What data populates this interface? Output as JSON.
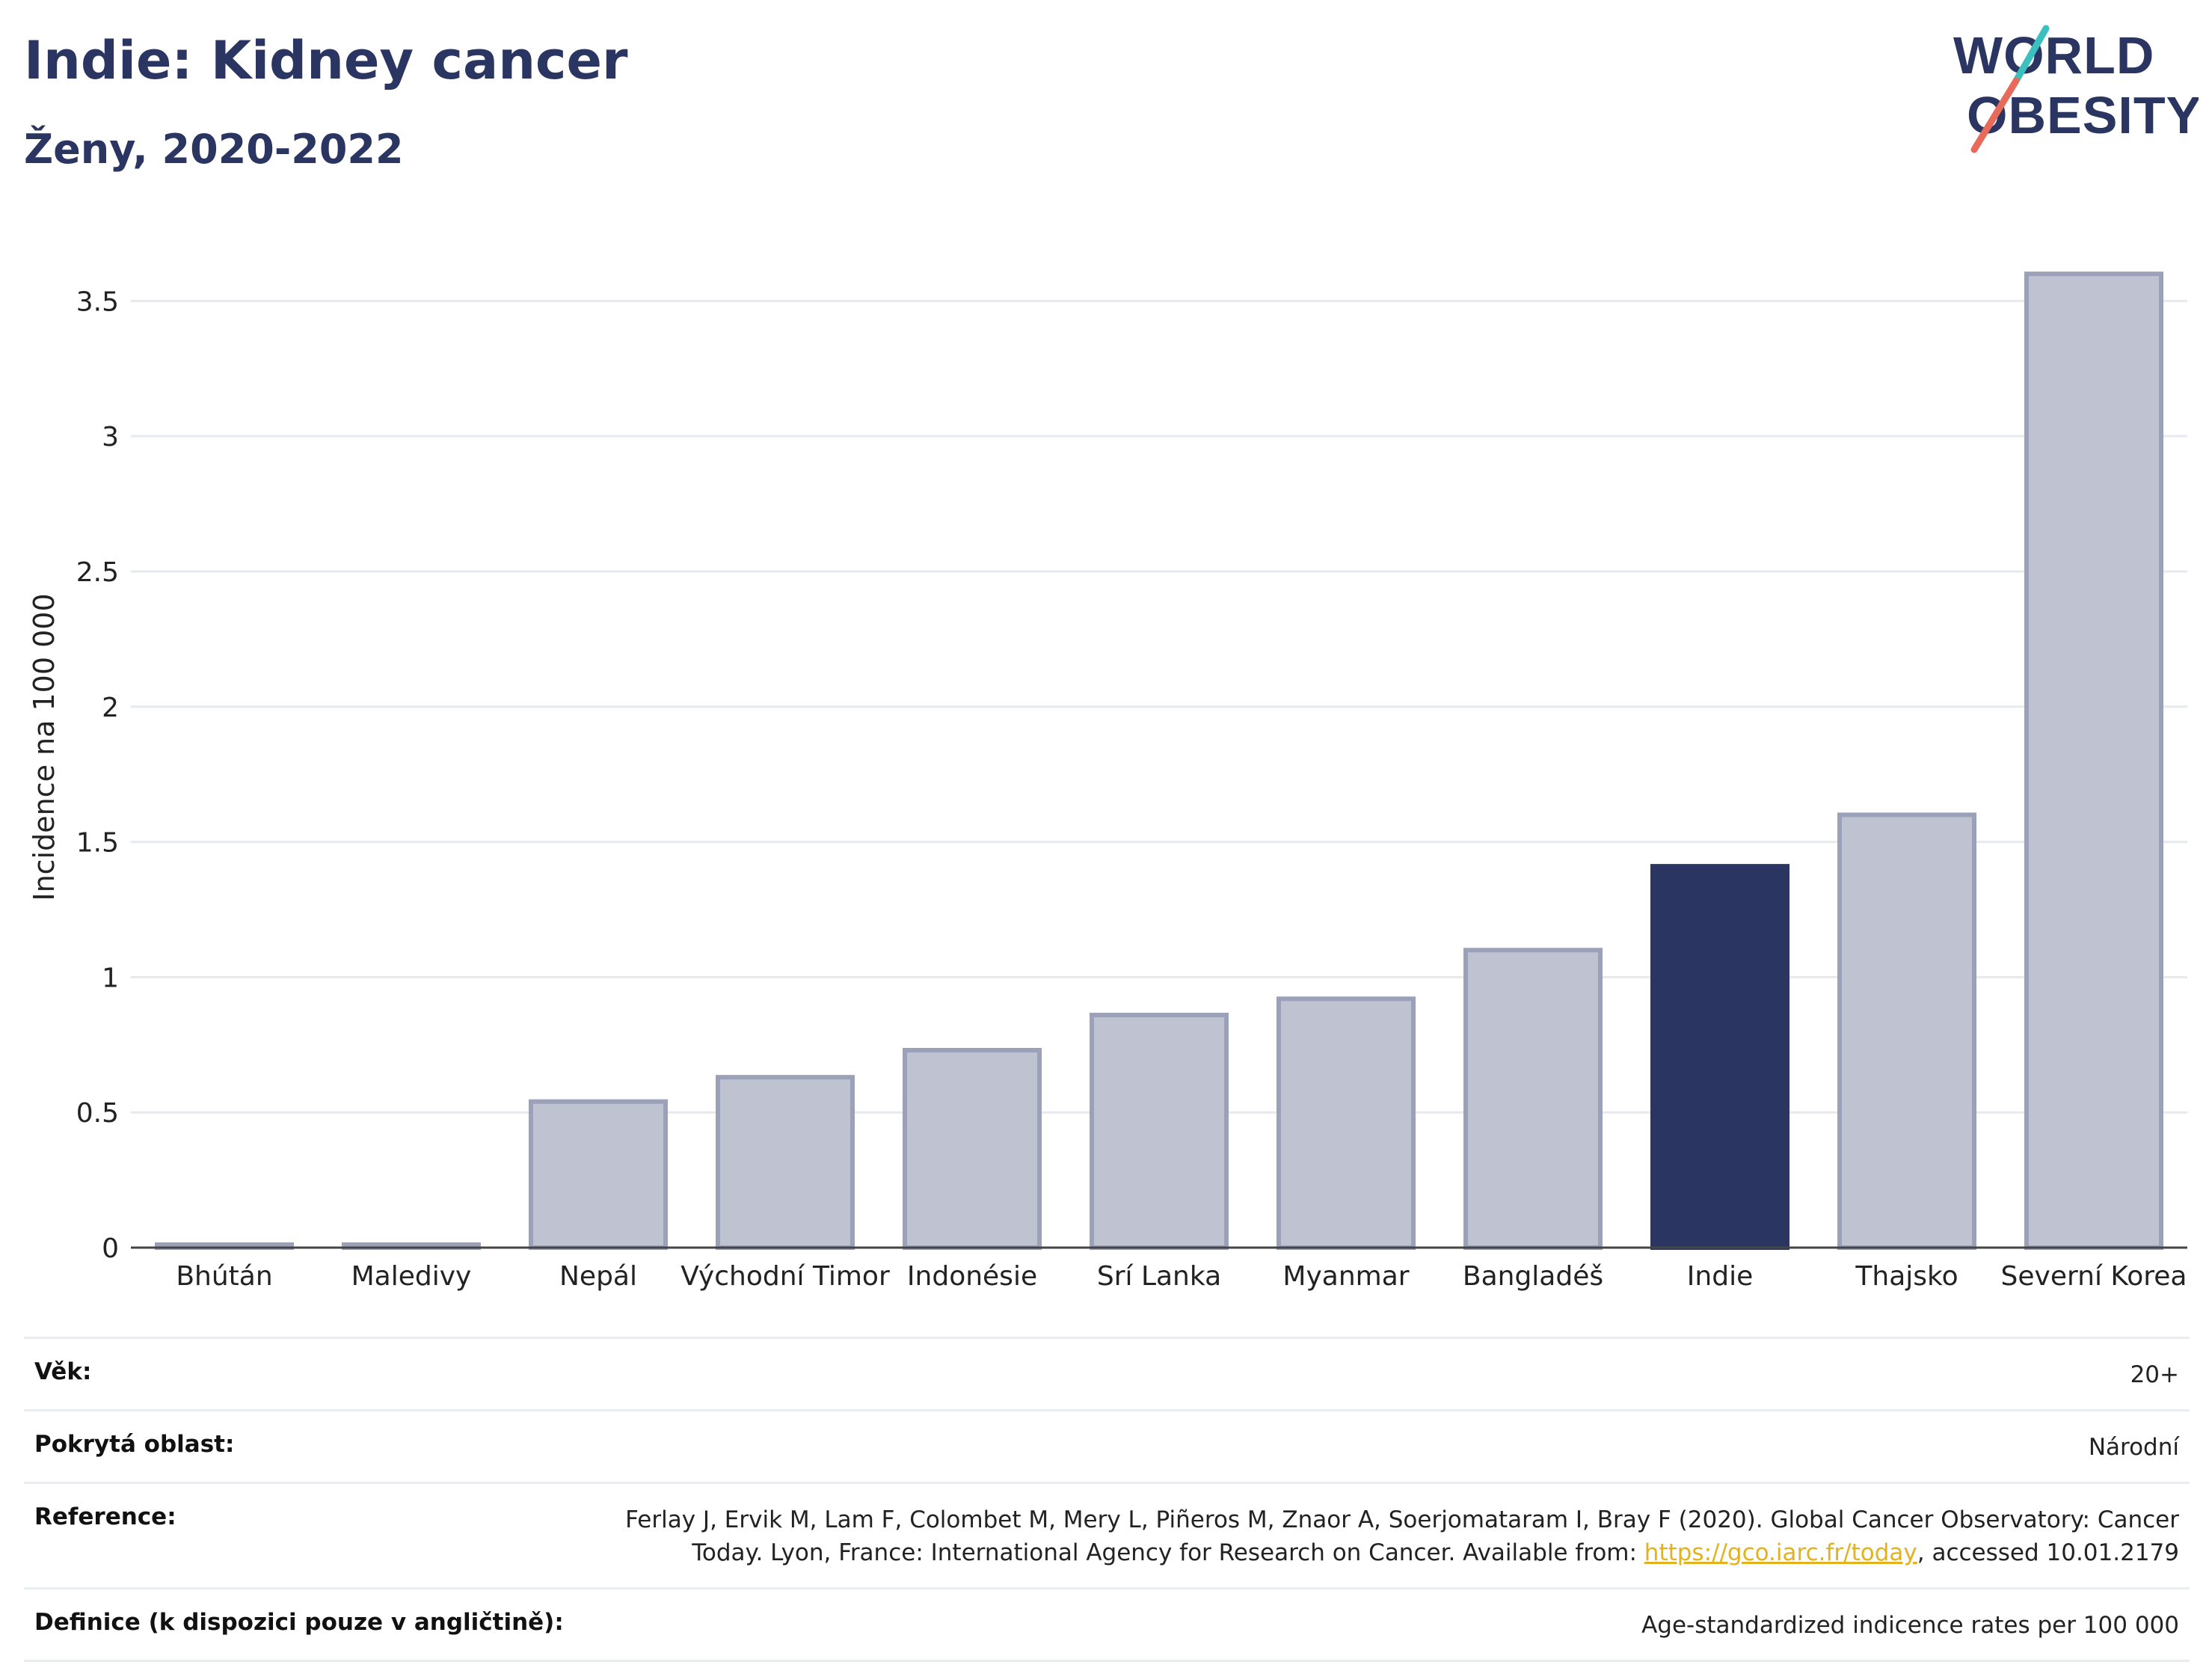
{
  "header": {
    "title": "Indie: Kidney cancer",
    "subtitle": "Ženy, 2020-2022"
  },
  "logo": {
    "line1": "WORLD",
    "line2": "OBESITY",
    "accent_teal": "#3bbfbf",
    "accent_coral": "#e86a5a"
  },
  "colors": {
    "highlight_bar": "#2a3561",
    "other_bar": "#bfc3d1",
    "other_bar_stroke": "#9aa1b8",
    "text": "#2a3561"
  },
  "chart_data": {
    "type": "bar",
    "title": "Indie: Kidney cancer",
    "subtitle": "Ženy, 2020-2022",
    "xlabel": "",
    "ylabel": "Incidence na 100 000",
    "categories": [
      "Bhútán",
      "Maledivy",
      "Nepál",
      "Východní Timor",
      "Indonésie",
      "Srí Lanka",
      "Myanmar",
      "Bangladéš",
      "Indie",
      "Thajsko",
      "Severní Korea"
    ],
    "values": [
      0.01,
      0.01,
      0.54,
      0.63,
      0.73,
      0.86,
      0.92,
      1.1,
      1.41,
      1.6,
      3.6
    ],
    "highlight": "Indie",
    "ylim": [
      0,
      3.7
    ],
    "yticks": [
      0,
      0.5,
      1,
      1.5,
      2,
      2.5,
      3,
      3.5
    ],
    "ytick_labels": [
      "0",
      "0.5",
      "1",
      "1.5",
      "2",
      "2.5",
      "3",
      "3.5"
    ],
    "grid": true,
    "legend": "none"
  },
  "info": {
    "rows": [
      {
        "label": "Věk:",
        "value": "20+"
      },
      {
        "label": "Pokrytá oblast:",
        "value": "Národní"
      },
      {
        "label": "Reference:",
        "value_before": "Ferlay J, Ervik M, Lam F, Colombet M, Mery L, Piñeros M, Znaor A, Soerjomataram I, Bray F (2020). Global Cancer Observatory: Cancer Today. Lyon, France: International Agency for Research on Cancer. Available from: ",
        "link": "https://gco.iarc.fr/today",
        "value_after": ", accessed 10.01.2179"
      },
      {
        "label": "Definice (k dispozici pouze v angličtině):",
        "value": "Age-standardized indicence rates per 100 000"
      }
    ]
  }
}
